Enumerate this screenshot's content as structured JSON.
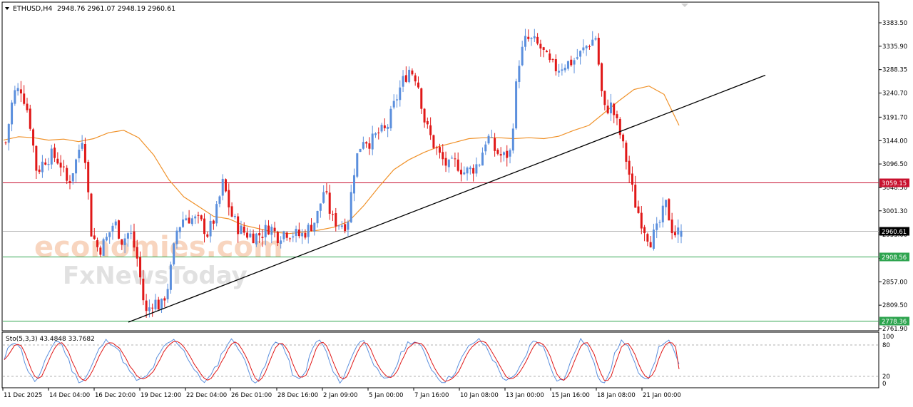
{
  "header": {
    "symbol_label": "ETHUSD,H4",
    "ohlc_text": "2948.76 2961.07 2948.19 2960.61"
  },
  "watermark": {
    "brand_top": "economies.com",
    "brand_bottom": "FxNewsToday"
  },
  "colors": {
    "bull": "#5b8fdd",
    "bear": "#e01818",
    "ma": "#f0922a",
    "trendline": "#000000",
    "resistance": "#c8102e",
    "support": "#2ea44f",
    "current": "#b8b8b8",
    "stoch_main": "#5b8fdd",
    "stoch_signal": "#e01818"
  },
  "chart_data": [
    {
      "type": "candlestick",
      "symbol": "ETHUSD",
      "timeframe": "H4",
      "price_axis": {
        "ylim": [
          2750,
          3400
        ],
        "ticks": [
          "3383.50",
          "3335.90",
          "3288.35",
          "3240.70",
          "3191.70",
          "3144.00",
          "3096.50",
          "3048.50",
          "3001.30",
          "2953.00",
          "2904.75",
          "2857.00",
          "2809.50",
          "2761.90"
        ]
      },
      "time_axis": {
        "labels": [
          "11 Dec 2025",
          "14 Dec 04:00",
          "16 Dec 20:00",
          "19 Dec 12:00",
          "22 Dec 04:00",
          "26 Dec 01:00",
          "28 Dec 16:00",
          "2 Jan 09:00",
          "5 Jan 00:00",
          "7 Jan 16:00",
          "10 Jan 08:00",
          "13 Jan 00:00",
          "15 Jan 16:00",
          "18 Jan 08:00",
          "21 Jan 00:00"
        ]
      },
      "price_levels": [
        {
          "name": "resistance",
          "value": 3059.15,
          "label": "3059.15"
        },
        {
          "name": "current",
          "value": 2960.61,
          "label": "2960.61"
        },
        {
          "name": "support_1",
          "value": 2908.56,
          "label": "2908.56"
        },
        {
          "name": "support_2",
          "value": 2778.36,
          "label": "2778.36"
        }
      ],
      "trendline": {
        "from": {
          "time": "17 Dec",
          "price": 2775
        },
        "to": {
          "time": "22 Jan",
          "price": 3277
        }
      },
      "moving_average": [
        3145,
        3152,
        3150,
        3145,
        3147,
        3142,
        3148,
        3160,
        3165,
        3150,
        3115,
        3065,
        3030,
        3010,
        2990,
        2985,
        2972,
        2965,
        2958,
        2955,
        2958,
        2962,
        2968,
        2980,
        3012,
        3050,
        3085,
        3105,
        3120,
        3132,
        3140,
        3148,
        3150,
        3150,
        3148,
        3150,
        3148,
        3153,
        3165,
        3175,
        3200,
        3225,
        3248,
        3255,
        3238,
        3175
      ],
      "price_path": [
        3140,
        3240,
        3250,
        3195,
        3080,
        3105,
        3115,
        3100,
        3055,
        3100,
        3160,
        2960,
        2920,
        2945,
        2980,
        2940,
        2960,
        2900,
        2790,
        2820,
        2805,
        2855,
        2960,
        2990,
        2985,
        2980,
        2955,
        2990,
        3060,
        2995,
        2965,
        2955,
        2950,
        2955,
        2970,
        2950,
        2960,
        2955,
        2950,
        2965,
        2985,
        3045,
        2985,
        2975,
        2975,
        3100,
        3150,
        3140,
        3160,
        3165,
        3215,
        3260,
        3290,
        3270,
        3180,
        3140,
        3110,
        3090,
        3100,
        3080,
        3085,
        3100,
        3155,
        3125,
        3110,
        3120,
        3300,
        3350,
        3345,
        3330,
        3300,
        3290,
        3300,
        3305,
        3320,
        3340,
        3355,
        3205,
        3215,
        3165,
        3100,
        3020,
        2975,
        2940,
        2965,
        3015,
        2955,
        2960
      ]
    },
    {
      "type": "line",
      "name": "Sto(5,3,3)",
      "label_text": "Sto(5,3,3) 43.4848 33.7682",
      "ylim": [
        0,
        100
      ],
      "levels": [
        80,
        20
      ],
      "ticks": [
        "100",
        "80",
        "20",
        "0"
      ],
      "series": [
        {
          "name": "main",
          "value": 43.4848
        },
        {
          "name": "signal",
          "value": 33.7682
        }
      ]
    }
  ]
}
